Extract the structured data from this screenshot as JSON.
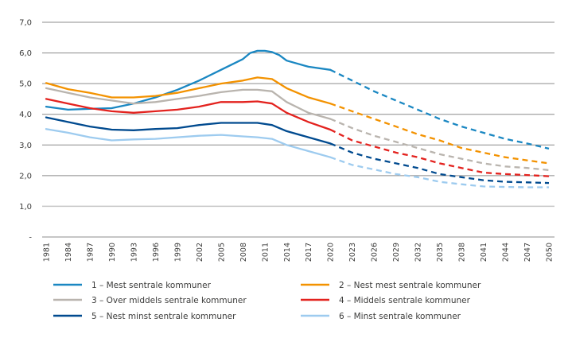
{
  "chart_data": {
    "type": "line",
    "title": "",
    "xlabel": "",
    "ylabel": "",
    "ylim": [
      0,
      7
    ],
    "xlim": [
      1981,
      2050
    ],
    "grid": true,
    "legend_position": "bottom",
    "y_ticks": [
      {
        "value": 0,
        "label": "-"
      },
      {
        "value": 1,
        "label": "1,0"
      },
      {
        "value": 2,
        "label": "2,0"
      },
      {
        "value": 3,
        "label": "3,0"
      },
      {
        "value": 4,
        "label": "4,0"
      },
      {
        "value": 5,
        "label": "5,0"
      },
      {
        "value": 6,
        "label": "6,0"
      },
      {
        "value": 7,
        "label": "7,0"
      }
    ],
    "x_ticks": [
      "1981",
      "1984",
      "1987",
      "1990",
      "1993",
      "1996",
      "1999",
      "2002",
      "2005",
      "2008",
      "2011",
      "2014",
      "2017",
      "2020",
      "2023",
      "2026",
      "2029",
      "2032",
      "2035",
      "2038",
      "2041",
      "2044",
      "2047",
      "2050"
    ],
    "projection_start": 2020,
    "series": [
      {
        "name": "1 – Mest sentrale kommuner",
        "color": "#1a87c2",
        "x": [
          1981,
          1984,
          1987,
          1990,
          1993,
          1996,
          1999,
          2002,
          2005,
          2008,
          2009,
          2010,
          2011,
          2012,
          2013,
          2014,
          2017,
          2020,
          2023,
          2026,
          2029,
          2032,
          2035,
          2038,
          2041,
          2044,
          2047,
          2050
        ],
        "values": [
          4.25,
          4.15,
          4.18,
          4.2,
          4.35,
          4.55,
          4.8,
          5.1,
          5.45,
          5.8,
          6.0,
          6.07,
          6.07,
          6.03,
          5.93,
          5.75,
          5.55,
          5.45,
          5.1,
          4.75,
          4.45,
          4.15,
          3.85,
          3.6,
          3.4,
          3.2,
          3.05,
          2.88
        ]
      },
      {
        "name": "2 – Nest mest sentrale kommuner",
        "color": "#f39200",
        "x": [
          1981,
          1984,
          1987,
          1990,
          1993,
          1996,
          1999,
          2002,
          2005,
          2008,
          2010,
          2012,
          2014,
          2017,
          2020,
          2023,
          2026,
          2029,
          2032,
          2035,
          2038,
          2041,
          2044,
          2047,
          2050
        ],
        "values": [
          5.02,
          4.82,
          4.7,
          4.55,
          4.55,
          4.6,
          4.7,
          4.85,
          5.0,
          5.1,
          5.2,
          5.15,
          4.85,
          4.55,
          4.35,
          4.1,
          3.85,
          3.6,
          3.35,
          3.15,
          2.9,
          2.75,
          2.6,
          2.5,
          2.4
        ]
      },
      {
        "name": "3 – Over middels sentrale kommuner",
        "color": "#b9b4ae",
        "x": [
          1981,
          1984,
          1987,
          1990,
          1993,
          1996,
          1999,
          2002,
          2005,
          2008,
          2010,
          2012,
          2014,
          2017,
          2020,
          2023,
          2026,
          2029,
          2032,
          2035,
          2038,
          2041,
          2044,
          2047,
          2050
        ],
        "values": [
          4.85,
          4.7,
          4.55,
          4.45,
          4.35,
          4.4,
          4.5,
          4.6,
          4.72,
          4.8,
          4.8,
          4.75,
          4.4,
          4.05,
          3.85,
          3.55,
          3.3,
          3.1,
          2.9,
          2.7,
          2.55,
          2.4,
          2.3,
          2.25,
          2.18
        ]
      },
      {
        "name": "4 – Middels sentrale kommuner",
        "color": "#e3221e",
        "x": [
          1981,
          1984,
          1987,
          1990,
          1993,
          1996,
          1999,
          2002,
          2005,
          2008,
          2010,
          2012,
          2014,
          2017,
          2020,
          2023,
          2026,
          2029,
          2032,
          2035,
          2038,
          2041,
          2044,
          2047,
          2050
        ],
        "values": [
          4.5,
          4.35,
          4.2,
          4.1,
          4.05,
          4.1,
          4.15,
          4.25,
          4.4,
          4.4,
          4.42,
          4.35,
          4.05,
          3.75,
          3.5,
          3.15,
          2.95,
          2.75,
          2.6,
          2.4,
          2.25,
          2.1,
          2.05,
          2.02,
          1.98
        ]
      },
      {
        "name": "5 – Nest minst sentrale kommuner",
        "color": "#004a8f",
        "x": [
          1981,
          1984,
          1987,
          1990,
          1993,
          1996,
          1999,
          2002,
          2005,
          2008,
          2010,
          2012,
          2014,
          2017,
          2020,
          2023,
          2026,
          2029,
          2032,
          2035,
          2038,
          2041,
          2044,
          2047,
          2050
        ],
        "values": [
          3.9,
          3.75,
          3.6,
          3.5,
          3.48,
          3.52,
          3.55,
          3.65,
          3.72,
          3.72,
          3.72,
          3.65,
          3.45,
          3.25,
          3.05,
          2.75,
          2.55,
          2.4,
          2.25,
          2.05,
          1.95,
          1.85,
          1.8,
          1.78,
          1.76
        ]
      },
      {
        "name": "6 – Minst sentrale kommuner",
        "color": "#9dcbef",
        "x": [
          1981,
          1984,
          1987,
          1990,
          1993,
          1996,
          1999,
          2002,
          2005,
          2008,
          2010,
          2012,
          2014,
          2017,
          2020,
          2023,
          2026,
          2029,
          2032,
          2035,
          2038,
          2041,
          2044,
          2047,
          2050
        ],
        "values": [
          3.52,
          3.4,
          3.25,
          3.15,
          3.18,
          3.2,
          3.25,
          3.3,
          3.33,
          3.28,
          3.25,
          3.2,
          3.0,
          2.8,
          2.6,
          2.35,
          2.2,
          2.05,
          1.95,
          1.8,
          1.72,
          1.65,
          1.63,
          1.62,
          1.62
        ]
      }
    ],
    "legend_order": [
      0,
      1,
      2,
      3,
      4,
      5
    ]
  },
  "colors": {
    "gridline": "#8c8c8c",
    "baseline": "#c6c6c6",
    "text": "#3c3c3b"
  }
}
